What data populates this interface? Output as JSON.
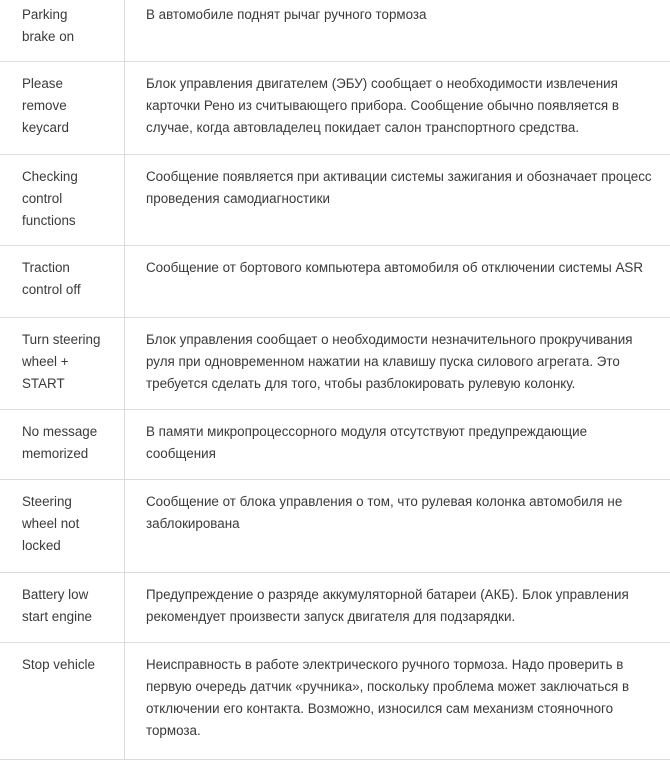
{
  "table": {
    "rows": [
      [
        [
          "Parking",
          "brake on"
        ],
        "В автомобиле поднят рычаг ручного тормоза"
      ],
      [
        [
          "Please",
          "remove",
          "keycard"
        ],
        "Блок управления двигателем (ЭБУ) сообщает о необходимости извлечения карточки Рено из считывающего прибора. Сообщение обычно появляется в случае, когда автовладелец покидает салон транспортного средства."
      ],
      [
        [
          "Checking",
          "control",
          "functions"
        ],
        "Сообщение появляется при активации системы зажигания и обозначает процесс проведения самодиагностики"
      ],
      [
        [
          "Traction",
          "control off"
        ],
        "Сообщение от бортового компьютера автомобиля об отключении системы ASR"
      ],
      [
        [
          "Turn steering",
          "wheel +",
          "START"
        ],
        "Блок управления сообщает о необходимости незначительного прокручивания руля при одновременном нажатии на клавишу пуска силового агрегата. Это требуется сделать для того, чтобы разблокировать рулевую колонку."
      ],
      [
        [
          "No message",
          "memorized"
        ],
        "В памяти микропроцессорного модуля отсутствуют предупреждающие сообщения"
      ],
      [
        [
          "Steering",
          "wheel not",
          "locked"
        ],
        "Сообщение от блока управления о том, что рулевая колонка автомобиля не заблокирована"
      ],
      [
        [
          "Battery low",
          "start engine"
        ],
        "Предупреждение о разряде аккумуляторной батареи (АКБ). Блок управления рекомендует произвести запуск двигателя для подзарядки."
      ],
      [
        [
          "Stop vehicle"
        ],
        "Неисправность в работе электрического ручного тормоза. Надо проверить в первую очередь датчик «ручника», поскольку проблема может заключаться в отключении его контакта. Возможно, износился сам механизм стояночного тормоза."
      ]
    ]
  }
}
